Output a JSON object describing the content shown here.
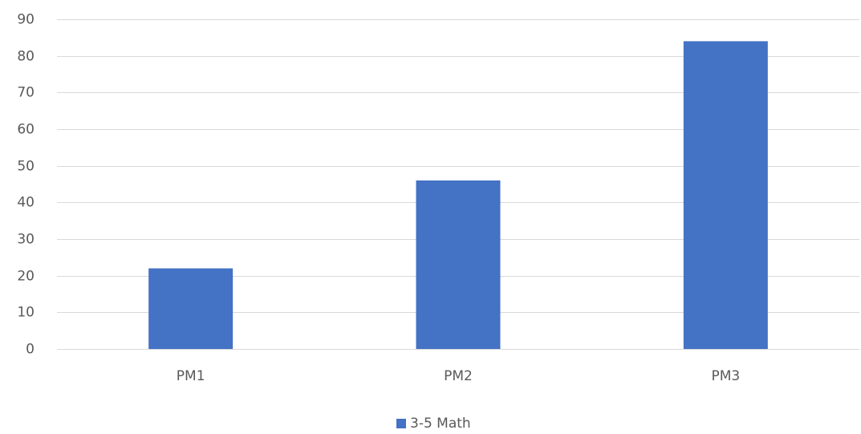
{
  "chart_data": {
    "type": "bar",
    "categories": [
      "PM1",
      "PM2",
      "PM3"
    ],
    "series": [
      {
        "name": "3-5 Math",
        "values": [
          22,
          46,
          84
        ],
        "color": "#4472C4"
      }
    ],
    "yticks": [
      0,
      10,
      20,
      30,
      40,
      50,
      60,
      70,
      80,
      90
    ],
    "ylim": [
      0,
      90
    ],
    "grid": true,
    "gridColor": "#d9d9d9",
    "legend": "bottom",
    "title": "",
    "xlabel": "",
    "ylabel": ""
  }
}
